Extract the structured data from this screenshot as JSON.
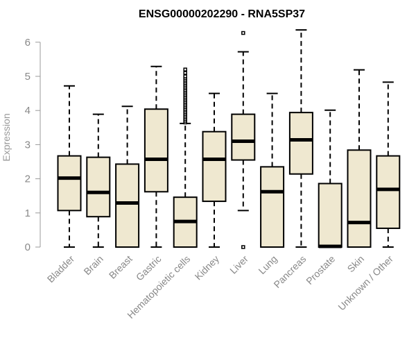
{
  "chart_data": {
    "type": "boxplot",
    "title": "ENSG00000202290 - RNA5SP37",
    "ylabel": "Expression",
    "xlabel": "",
    "ylim": [
      0,
      6.5
    ],
    "yticks": [
      0,
      1,
      2,
      3,
      4,
      5,
      6
    ],
    "box_fill": "#efe8d0",
    "box_stroke": "#000000",
    "axis_color": "#999999",
    "categories": [
      {
        "name": "Bladder",
        "min": 0,
        "q1": 1.07,
        "median": 2.02,
        "q3": 2.67,
        "max": 4.72,
        "outliers": []
      },
      {
        "name": "Brain",
        "min": 0,
        "q1": 0.89,
        "median": 1.6,
        "q3": 2.63,
        "max": 3.89,
        "outliers": []
      },
      {
        "name": "Breast",
        "min": 0,
        "q1": 0,
        "median": 1.29,
        "q3": 2.43,
        "max": 4.12,
        "outliers": []
      },
      {
        "name": "Gastric",
        "min": 0,
        "q1": 1.62,
        "median": 2.57,
        "q3": 4.04,
        "max": 5.29,
        "outliers": []
      },
      {
        "name": "Hematopoietic cells",
        "min": 0,
        "q1": 0,
        "median": 0.75,
        "q3": 1.46,
        "max": 3.62,
        "outliers": [
          3.65,
          3.7,
          3.75,
          3.8,
          3.85,
          3.9,
          3.95,
          4.0,
          4.05,
          4.1,
          4.15,
          4.2,
          4.25,
          4.3,
          4.35,
          4.4,
          4.45,
          4.5,
          4.55,
          4.6,
          4.65,
          4.7,
          4.75,
          4.8,
          4.85,
          4.9,
          4.95,
          5.0,
          5.1,
          5.2
        ]
      },
      {
        "name": "Kidney",
        "min": 0,
        "q1": 1.34,
        "median": 2.57,
        "q3": 3.38,
        "max": 4.5,
        "outliers": []
      },
      {
        "name": "Liver",
        "min": 1.07,
        "q1": 2.55,
        "median": 3.1,
        "q3": 3.89,
        "max": 5.72,
        "outliers": [
          0.0,
          6.27
        ]
      },
      {
        "name": "Lung",
        "min": 0,
        "q1": 0,
        "median": 1.62,
        "q3": 2.35,
        "max": 4.5,
        "outliers": []
      },
      {
        "name": "Pancreas",
        "min": 0,
        "q1": 2.14,
        "median": 3.14,
        "q3": 3.94,
        "max": 6.36,
        "outliers": []
      },
      {
        "name": "Prostate",
        "min": 0,
        "q1": 0,
        "median": 0.02,
        "q3": 1.86,
        "max": 4.01,
        "outliers": []
      },
      {
        "name": "Skin",
        "min": 0,
        "q1": 0,
        "median": 0.72,
        "q3": 2.84,
        "max": 5.19,
        "outliers": []
      },
      {
        "name": "Unknown / Other",
        "min": 0,
        "q1": 0.55,
        "median": 1.69,
        "q3": 2.67,
        "max": 4.83,
        "outliers": []
      }
    ]
  }
}
